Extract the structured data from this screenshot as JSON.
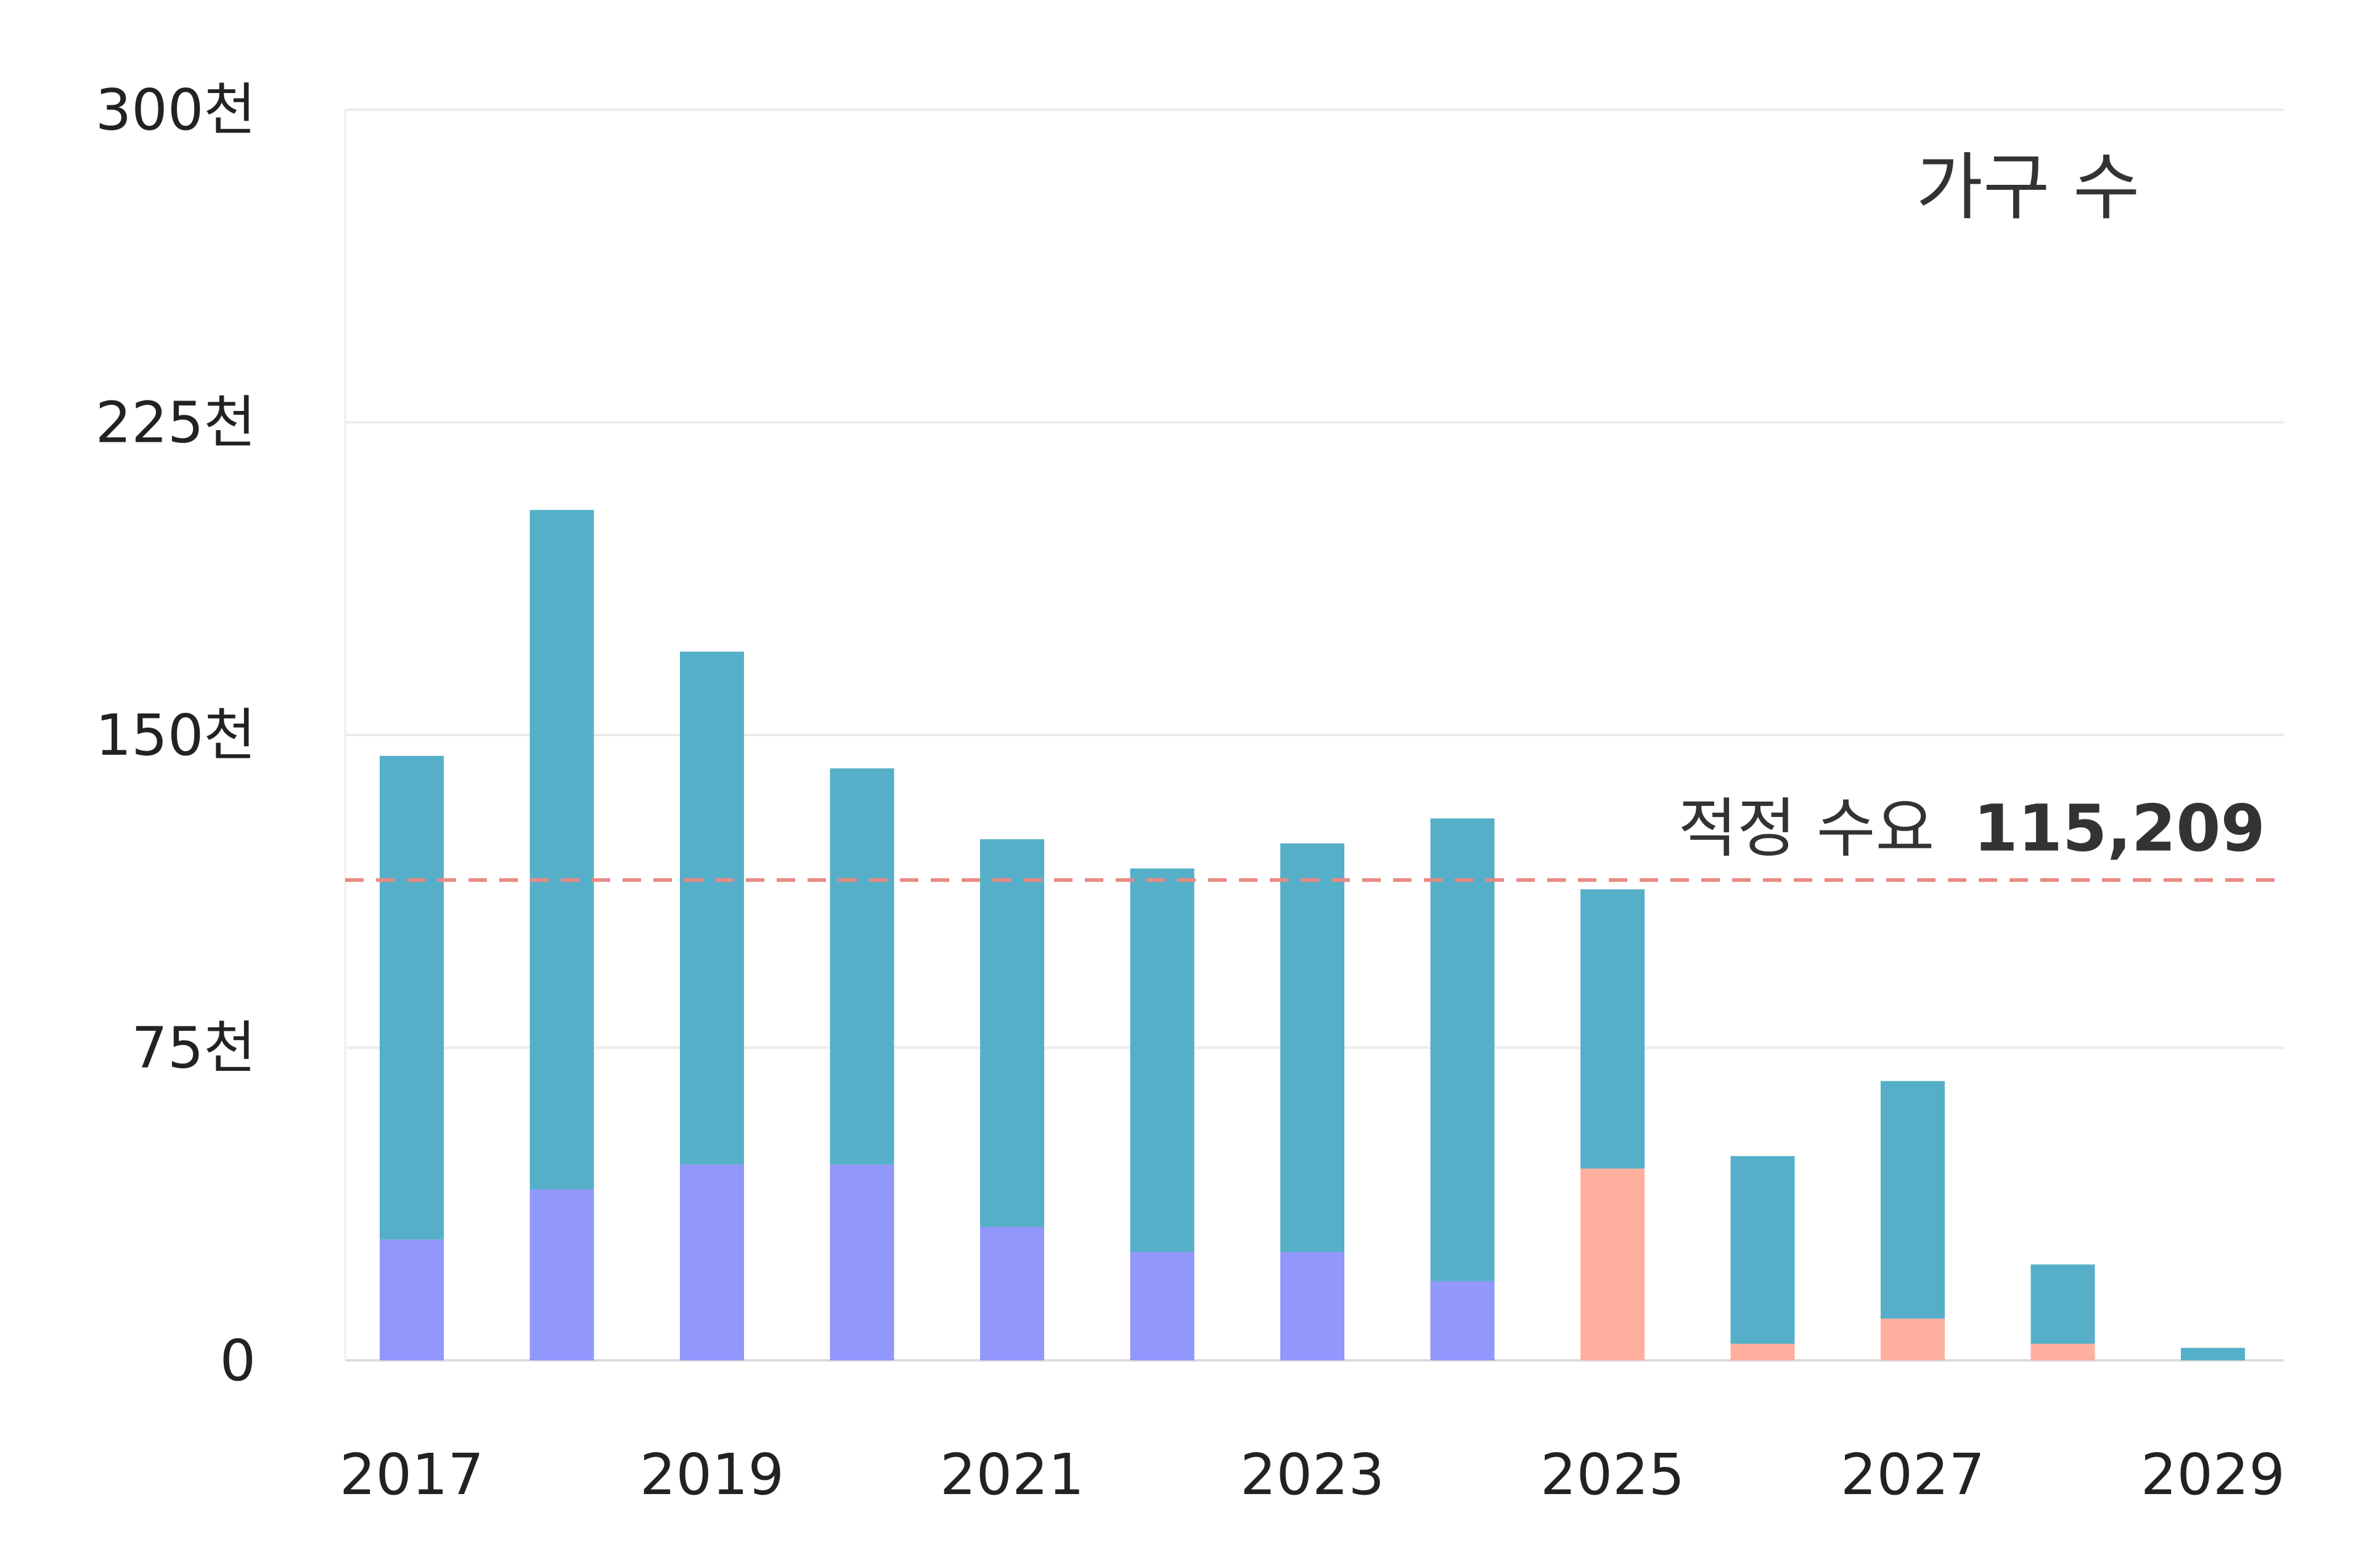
{
  "chart_data": {
    "type": "bar",
    "stacked": true,
    "categories": [
      "2017",
      "2018",
      "2019",
      "2020",
      "2021",
      "2022",
      "2023",
      "2024",
      "2025",
      "2026",
      "2027",
      "2028",
      "2029"
    ],
    "x_tick_labels": [
      "2017",
      "2019",
      "2021",
      "2023",
      "2025",
      "2027",
      "2029"
    ],
    "series": [
      {
        "segment": "base",
        "values": [
          29000,
          41000,
          47000,
          47000,
          32000,
          26000,
          26000,
          19000,
          46000,
          4000,
          10000,
          4000,
          0
        ],
        "colors": [
          "#9197fb",
          "#9197fb",
          "#9197fb",
          "#9197fb",
          "#9197fb",
          "#9197fb",
          "#9197fb",
          "#9197fb",
          "#ffaf9e",
          "#ffaf9e",
          "#ffaf9e",
          "#ffaf9e",
          "#ffaf9e"
        ]
      },
      {
        "segment": "top",
        "values": [
          116000,
          163000,
          123000,
          95000,
          93000,
          92000,
          98000,
          111000,
          67000,
          45000,
          57000,
          19000,
          3000
        ],
        "color": "#56afc8"
      }
    ],
    "totals": [
      145000,
      204000,
      170000,
      142000,
      125000,
      118000,
      124000,
      130000,
      113000,
      49000,
      67000,
      23000,
      3000
    ],
    "y_ticks": [
      {
        "value": 0,
        "label": "0"
      },
      {
        "value": 75000,
        "label": "75천"
      },
      {
        "value": 150000,
        "label": "150천"
      },
      {
        "value": 225000,
        "label": "225천"
      },
      {
        "value": 300000,
        "label": "300천"
      }
    ],
    "ylim": [
      0,
      300000
    ],
    "legend": {
      "label": "가구 수",
      "position": "top-right"
    },
    "reference_line": {
      "value": 115209,
      "label_prefix": "적정 수요",
      "label_value": "115,209",
      "style": "dashed",
      "color": "#e88a85"
    },
    "grid": true,
    "title": "",
    "xlabel": "",
    "ylabel": ""
  }
}
